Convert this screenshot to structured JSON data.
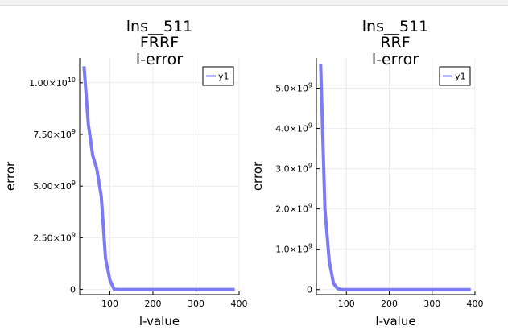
{
  "chart_data": [
    {
      "type": "line",
      "title_lines": [
        "lns__511",
        "FRRF",
        "l-error"
      ],
      "xlabel": "l-value",
      "ylabel": "error",
      "xlim": [
        30,
        400
      ],
      "ylim": [
        -250000000.0,
        11200000000.0
      ],
      "xticks": [
        100,
        200,
        300,
        400
      ],
      "xtick_labels": [
        "100",
        "200",
        "300",
        "400"
      ],
      "yticks": [
        0,
        2500000000.0,
        5000000000.0,
        7500000000.0,
        10000000000.0
      ],
      "ytick_labels": [
        {
          "mantissa": "0",
          "exp": ""
        },
        {
          "mantissa": "2.50×10",
          "exp": "9"
        },
        {
          "mantissa": "5.00×10",
          "exp": "9"
        },
        {
          "mantissa": "7.50×10",
          "exp": "9"
        },
        {
          "mantissa": "1.00×10",
          "exp": "10"
        }
      ],
      "grid": true,
      "legend_position": "top-right",
      "series": [
        {
          "name": "y1",
          "color": "#7b7bf5",
          "x": [
            40,
            50,
            60,
            70,
            80,
            90,
            100,
            110,
            120,
            200,
            300,
            390
          ],
          "y": [
            10800000000.0,
            8000000000.0,
            6500000000.0,
            5800000000.0,
            4500000000.0,
            1500000000.0,
            450000000.0,
            10000000.0,
            0,
            0,
            0,
            0
          ]
        }
      ]
    },
    {
      "type": "line",
      "title_lines": [
        "lns__511",
        "RRF",
        "l-error"
      ],
      "xlabel": "l-value",
      "ylabel": "error",
      "xlim": [
        30,
        400
      ],
      "ylim": [
        -125000000.0,
        5750000000.0
      ],
      "xticks": [
        100,
        200,
        300,
        400
      ],
      "xtick_labels": [
        "100",
        "200",
        "300",
        "400"
      ],
      "yticks": [
        0,
        1000000000.0,
        2000000000.0,
        3000000000.0,
        4000000000.0,
        5000000000.0
      ],
      "ytick_labels": [
        {
          "mantissa": "0",
          "exp": ""
        },
        {
          "mantissa": "1.0×10",
          "exp": "9"
        },
        {
          "mantissa": "2.0×10",
          "exp": "9"
        },
        {
          "mantissa": "3.0×10",
          "exp": "9"
        },
        {
          "mantissa": "4.0×10",
          "exp": "9"
        },
        {
          "mantissa": "5.0×10",
          "exp": "9"
        }
      ],
      "grid": true,
      "legend_position": "top-right",
      "series": [
        {
          "name": "y1",
          "color": "#7b7bf5",
          "x": [
            40,
            50,
            60,
            70,
            80,
            90,
            100,
            200,
            300,
            390
          ],
          "y": [
            5600000000.0,
            2000000000.0,
            700000000.0,
            150000000.0,
            20000000.0,
            0,
            0,
            0,
            0,
            0
          ]
        }
      ]
    }
  ]
}
